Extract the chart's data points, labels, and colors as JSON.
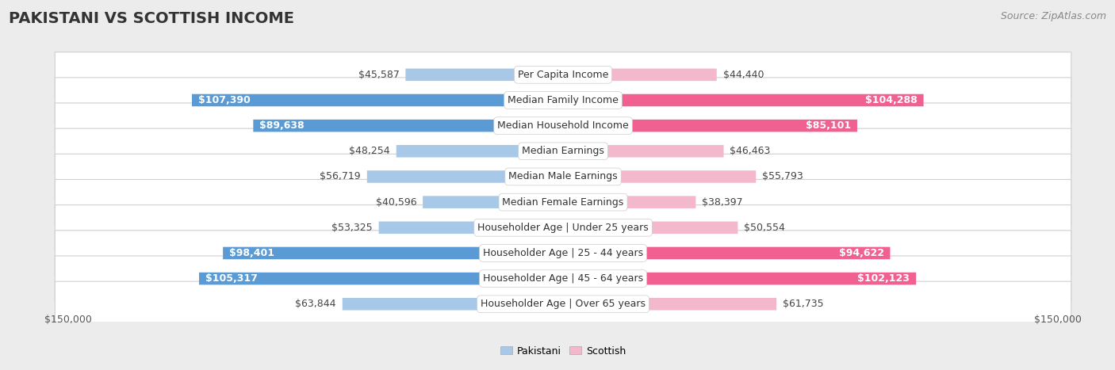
{
  "title": "PAKISTANI VS SCOTTISH INCOME",
  "source": "Source: ZipAtlas.com",
  "categories": [
    "Per Capita Income",
    "Median Family Income",
    "Median Household Income",
    "Median Earnings",
    "Median Male Earnings",
    "Median Female Earnings",
    "Householder Age | Under 25 years",
    "Householder Age | 25 - 44 years",
    "Householder Age | 45 - 64 years",
    "Householder Age | Over 65 years"
  ],
  "pakistani_values": [
    45587,
    107390,
    89638,
    48254,
    56719,
    40596,
    53325,
    98401,
    105317,
    63844
  ],
  "scottish_values": [
    44440,
    104288,
    85101,
    46463,
    55793,
    38397,
    50554,
    94622,
    102123,
    61735
  ],
  "pakistani_labels": [
    "$45,587",
    "$107,390",
    "$89,638",
    "$48,254",
    "$56,719",
    "$40,596",
    "$53,325",
    "$98,401",
    "$105,317",
    "$63,844"
  ],
  "scottish_labels": [
    "$44,440",
    "$104,288",
    "$85,101",
    "$46,463",
    "$55,793",
    "$38,397",
    "$50,554",
    "$94,622",
    "$102,123",
    "$61,735"
  ],
  "max_value": 150000,
  "pakistani_color_light": "#a8c8e8",
  "pakistani_color_dark": "#5b9bd5",
  "scottish_color_light": "#f4b8cc",
  "scottish_color_dark": "#f06090",
  "background_color": "#ececec",
  "row_bg_color": "#ffffff",
  "threshold_dark_label": 80000,
  "title_fontsize": 14,
  "source_fontsize": 9,
  "value_fontsize": 9,
  "category_fontsize": 9,
  "legend_fontsize": 9,
  "axis_fontsize": 9
}
